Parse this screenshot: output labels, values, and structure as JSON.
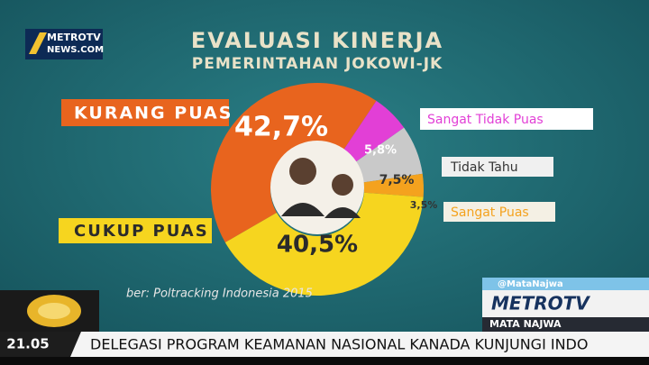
{
  "chart_data": {
    "type": "pie",
    "title": "EVALUASI KINERJA",
    "subtitle": "PEMERINTAHAN JOKOWI-JK",
    "categories": [
      "KURANG PUAS",
      "Sangat Tidak Puas",
      "Tidak Tahu",
      "Sangat Puas",
      "CUKUP PUAS"
    ],
    "values": [
      42.7,
      5.8,
      7.5,
      3.5,
      40.5
    ],
    "value_labels": [
      "42,7%",
      "5,8%",
      "7,5%",
      "3,5%",
      "40,5%"
    ],
    "colors": [
      "#e8641e",
      "#e23fd6",
      "#c9c9c9",
      "#f4a21e",
      "#f6d51f"
    ],
    "source": "ber: Poltracking Indonesia 2015"
  },
  "broadcast": {
    "logo_top": "METROTV",
    "logo_top_sub": "NEWS.COM",
    "twitter": "@MataNajwa",
    "channel": "METROTV",
    "show": "MATA NAJWA",
    "time": "21.05",
    "ticker": "DELEGASI PROGRAM KEAMANAN NASIONAL KANADA KUNJUNGI INDO"
  }
}
